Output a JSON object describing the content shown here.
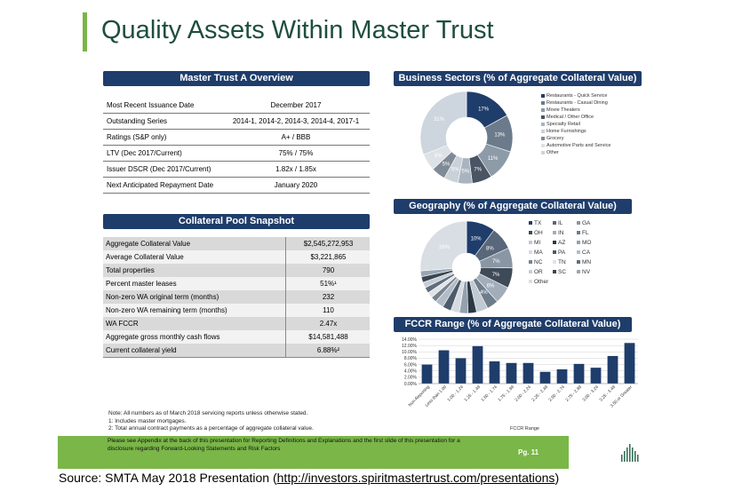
{
  "title": "Quality Assets Within Master Trust",
  "overview": {
    "header": "Master Trust A Overview",
    "rows": [
      {
        "label": "Most Recent Issuance Date",
        "value": "December 2017"
      },
      {
        "label": "Outstanding Series",
        "value": "2014-1, 2014-2, 2014-3, 2014-4, 2017-1"
      },
      {
        "label": "Ratings (S&P only)",
        "value": "A+ / BBB"
      },
      {
        "label": "LTV (Dec 2017/Current)",
        "value": "75% / 75%"
      },
      {
        "label": "Issuer DSCR (Dec 2017/Current)",
        "value": "1.82x / 1.85x"
      },
      {
        "label": "Next Anticipated Repayment Date",
        "value": "January 2020"
      }
    ]
  },
  "pool": {
    "header": "Collateral Pool Snapshot",
    "rows": [
      {
        "label": "Aggregate Collateral Value",
        "value": "$2,545,272,953"
      },
      {
        "label": "Average Collateral Value",
        "value": "$3,221,865"
      },
      {
        "label": "Total properties",
        "value": "790"
      },
      {
        "label": "Percent master leases",
        "value": "51%¹"
      },
      {
        "label": "Non-zero WA original term (months)",
        "value": "232"
      },
      {
        "label": "Non-zero WA remaining term (months)",
        "value": "110"
      },
      {
        "label": "WA FCCR",
        "value": "2.47x"
      },
      {
        "label": "Aggregate gross monthly cash flows",
        "value": "$14,581,488"
      },
      {
        "label": "Current collateral yield",
        "value": "6.88%²"
      }
    ]
  },
  "chart_data": [
    {
      "type": "pie",
      "title": "Business Sectors (% of Aggregate Collateral Value)",
      "categories": [
        "Restaurants - Quick Service",
        "Restaurants - Casual Dining",
        "Movie Theaters",
        "Medical / Other Office",
        "Specialty Retail",
        "Home Furnishings",
        "Grocery",
        "Automotive Parts and Service",
        "Other"
      ],
      "values": [
        17,
        13,
        11,
        7,
        5,
        5,
        5,
        6,
        31
      ],
      "labels": [
        "17%",
        "13%",
        "11%",
        "7%",
        "5%",
        "5%",
        "5%",
        "6%",
        "31%"
      ],
      "colors": [
        "#1f3d6b",
        "#6b7b8c",
        "#8d9aa8",
        "#4a5563",
        "#a8b4c0",
        "#c9d1d9",
        "#7f8a96",
        "#dde2e7",
        "#cdd5de"
      ]
    },
    {
      "type": "pie",
      "title": "Geography (% of Aggregate Collateral Value)",
      "categories": [
        "TX",
        "IL",
        "GA",
        "OH",
        "IN",
        "FL",
        "MI",
        "AZ",
        "MO",
        "MA",
        "PA",
        "CA",
        "NC",
        "TN",
        "MN",
        "OR",
        "SC",
        "NV",
        "Other"
      ],
      "values": [
        10,
        8,
        7,
        7,
        6,
        4,
        4,
        3,
        3,
        3,
        3,
        3,
        2,
        2,
        2,
        2,
        2,
        2,
        26
      ],
      "labels": [
        "10%",
        "8%",
        "7%",
        "7%",
        "6%",
        "4%",
        "",
        "",
        "",
        "",
        "",
        "",
        "",
        "",
        "",
        "",
        "",
        "",
        "26%"
      ],
      "colors": [
        "#1f3d6b",
        "#58677a",
        "#8a96a4",
        "#3f4a57",
        "#a2adb9",
        "#6e7c8b",
        "#c1c9d2",
        "#2c3846",
        "#95a1ad",
        "#d5dbe1",
        "#4d5b6b",
        "#b3bcc6",
        "#77838f",
        "#e0e4e9",
        "#5f6d7d",
        "#c8ced5",
        "#3a4654",
        "#9aa6b2",
        "#d9dee4"
      ]
    },
    {
      "type": "bar",
      "title": "FCCR Range (% of Aggregate Collateral Value)",
      "xlabel": "FCCR Range",
      "ylabel": "",
      "categories": [
        "Non-Reporting",
        "Less than 1.00",
        "1.00 - 1.24",
        "1.25 - 1.49",
        "1.50 - 1.74",
        "1.75 - 1.99",
        "2.00 - 2.24",
        "2.25 - 2.49",
        "2.50 - 2.74",
        "2.75 - 2.99",
        "3.00 - 3.24",
        "3.25 - 3.49",
        "3.50 or Greater"
      ],
      "values": [
        6.0,
        10.5,
        8.0,
        11.8,
        7.0,
        6.5,
        6.5,
        3.7,
        4.5,
        6.2,
        5.0,
        8.7,
        12.8
      ],
      "ylim": [
        0,
        14
      ],
      "yticks": [
        "0.00%",
        "2.00%",
        "4.00%",
        "6.00%",
        "8.00%",
        "10.00%",
        "12.00%",
        "14.00%"
      ],
      "color": "#1f3d6b",
      "grid": true
    }
  ],
  "notes": [
    "Note: All numbers as of March 2018 servicing reports unless otherwise stated.",
    "1: Includes master mortgages.",
    "2: Total annual contract payments as a percentage of aggregate collateral value."
  ],
  "footer": {
    "text": "Please see Appendix at the back of this presentation for Reporting Definitions and Explanations and the first slide of this presentation for a disclosure regarding Forward-Looking Statements and Risk Factors",
    "page": "Pg. 11"
  },
  "source": {
    "prefix": "Source: SMTA May 2018 Presentation (",
    "link": "http://investors.spiritmastertrust.com/presentations",
    "suffix": ")"
  }
}
